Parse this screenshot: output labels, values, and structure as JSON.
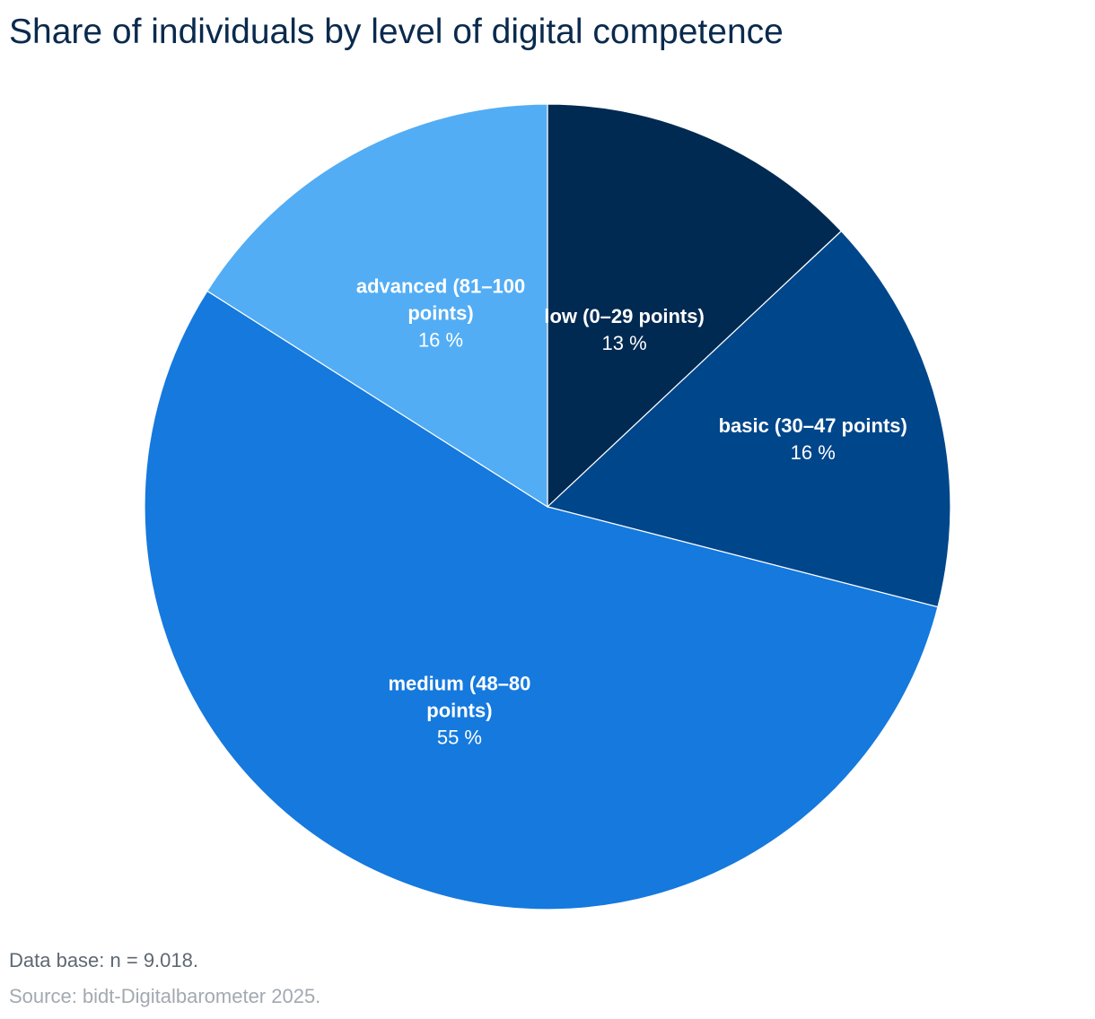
{
  "title": "Share of individuals by level of digital competence",
  "chart_data": {
    "type": "pie",
    "title": "Share of individuals by level of digital competence",
    "start_angle_deg": 0,
    "direction": "clockwise",
    "slices": [
      {
        "name": "low (0–29 points)",
        "name_lines": [
          "low (0–29 points)"
        ],
        "value": 13,
        "value_label": "13 %",
        "color": "#002a52"
      },
      {
        "name": "basic (30–47 points)",
        "name_lines": [
          "basic (30–47 points)"
        ],
        "value": 16,
        "value_label": "16 %",
        "color": "#00468b"
      },
      {
        "name": "medium (48–80 points)",
        "name_lines": [
          "medium (48–80",
          "points)"
        ],
        "value": 55,
        "value_label": "55 %",
        "color": "#1579de"
      },
      {
        "name": "advanced (81–100 points)",
        "name_lines": [
          "advanced (81–100",
          "points)"
        ],
        "value": 16,
        "value_label": "16 %",
        "color": "#52adf4"
      }
    ]
  },
  "footer": {
    "data_base": "Data base: n = 9.018.",
    "source": "Source: bidt-Digitalbarometer 2025."
  }
}
